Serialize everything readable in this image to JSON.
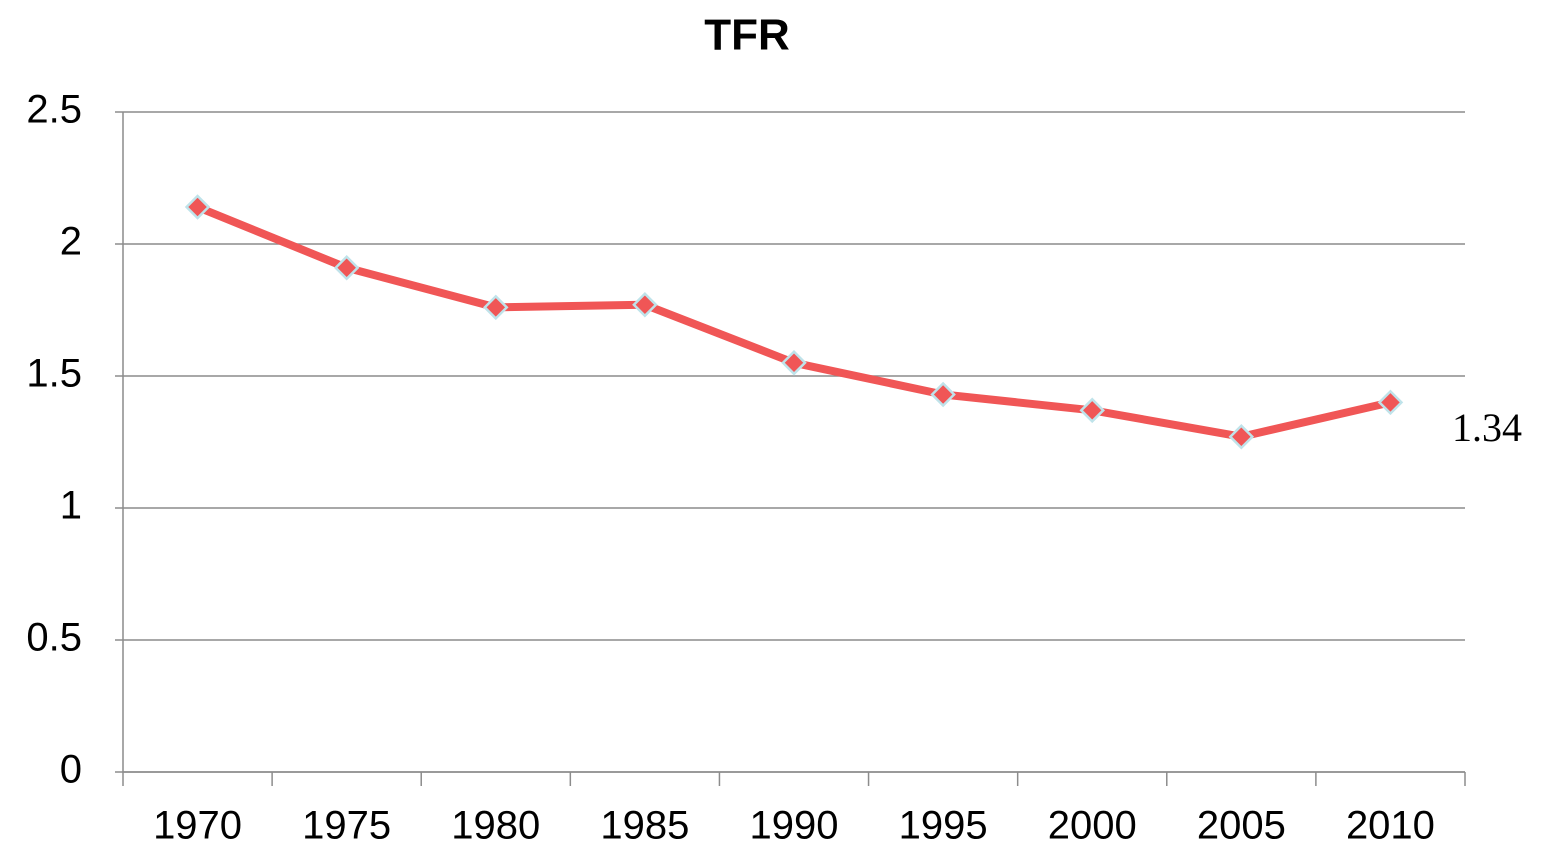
{
  "chart_data": {
    "type": "line",
    "title": "TFR",
    "categories": [
      "1970",
      "1975",
      "1980",
      "1985",
      "1990",
      "1995",
      "2000",
      "2005",
      "2010"
    ],
    "series": [
      {
        "name": "TFR",
        "color": "#f05656",
        "values": [
          2.14,
          1.91,
          1.76,
          1.77,
          1.55,
          1.43,
          1.37,
          1.27,
          1.4
        ]
      }
    ],
    "ylim": [
      0,
      2.5
    ],
    "yticks": [
      0,
      0.5,
      1,
      1.5,
      2,
      2.5
    ],
    "grid": true,
    "annotation": "1.34"
  }
}
